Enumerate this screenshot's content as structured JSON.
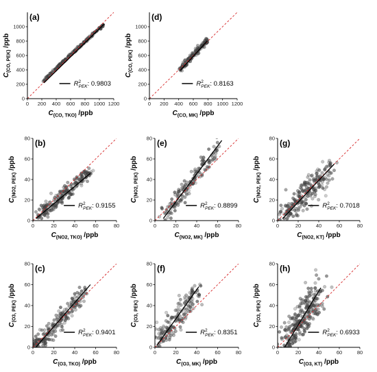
{
  "chart_data": [
    {
      "panel": "(a)",
      "type": "scatter",
      "xlabel": {
        "main": "C",
        "sub": "(CO, TKO)",
        "unit": "/ppb"
      },
      "ylabel": {
        "main": "C",
        "sub": "(CO, PEK)",
        "unit": "/ppb"
      },
      "xlim": [
        0,
        1200
      ],
      "ylim": [
        0,
        1200
      ],
      "xticks": [
        0,
        200,
        400,
        600,
        800,
        1000,
        1200
      ],
      "yticks": [
        0,
        200,
        400,
        600,
        800,
        1000
      ],
      "r2_label": {
        "main": "R",
        "sup": "2",
        "sub": "PEK",
        "value": ": 0.9803"
      },
      "fit": {
        "x": [
          230,
          1070
        ],
        "y": [
          220,
          1040
        ]
      },
      "cloud": {
        "x": [
          [
            230,
            250
          ],
          [
            300,
            330
          ],
          [
            400,
            420
          ],
          [
            500,
            520
          ],
          [
            600,
            610
          ],
          [
            700,
            700
          ],
          [
            800,
            790
          ],
          [
            900,
            890
          ],
          [
            1000,
            970
          ],
          [
            1060,
            1030
          ]
        ],
        "spread": 0.35,
        "n": 170
      }
    },
    {
      "panel": "(d)",
      "type": "scatter",
      "xlabel": {
        "main": "C",
        "sub": "(CO, MK)",
        "unit": "/ppb"
      },
      "ylabel": {
        "main": "C",
        "sub": "(CO, PEK)",
        "unit": "/ppb"
      },
      "xlim": [
        0,
        1200
      ],
      "ylim": [
        0,
        1200
      ],
      "xticks": [
        0,
        200,
        400,
        600,
        800,
        1000,
        1200
      ],
      "yticks": [
        0,
        200,
        400,
        600,
        800,
        1000
      ],
      "r2_label": {
        "main": "R",
        "sup": "2",
        "sub": "PEK",
        "value": ": 0.8163"
      },
      "fit": {
        "x": [
          420,
          790
        ],
        "y": [
          390,
          800
        ]
      },
      "cloud": {
        "x": [
          [
            420,
            400
          ],
          [
            480,
            470
          ],
          [
            540,
            540
          ],
          [
            600,
            610
          ],
          [
            650,
            660
          ],
          [
            700,
            720
          ],
          [
            760,
            780
          ],
          [
            790,
            810
          ]
        ],
        "spread": 0.9,
        "n": 130
      }
    },
    {
      "panel": "(b)",
      "type": "scatter",
      "xlabel": {
        "main": "C",
        "sub": "(NO2, TKO)",
        "unit": "/ppb"
      },
      "ylabel": {
        "main": "C",
        "sub": "(NO2, PEK)",
        "unit": "/ppb"
      },
      "xlim": [
        0,
        80
      ],
      "ylim": [
        0,
        80
      ],
      "xticks": [
        0,
        20,
        40,
        60,
        80
      ],
      "yticks": [
        0,
        20,
        40,
        60,
        80
      ],
      "r2_label": {
        "main": "R",
        "sup": "2",
        "sub": "PEK",
        "value": ": 0.9155"
      },
      "fit": {
        "x": [
          3,
          55
        ],
        "y": [
          2,
          46
        ]
      },
      "cloud": {
        "x": [
          [
            5,
            4
          ],
          [
            10,
            8
          ],
          [
            15,
            12
          ],
          [
            20,
            17
          ],
          [
            25,
            21
          ],
          [
            30,
            26
          ],
          [
            35,
            30
          ],
          [
            40,
            34
          ],
          [
            45,
            38
          ],
          [
            50,
            43
          ],
          [
            55,
            47
          ]
        ],
        "spread": 2.0,
        "n": 200
      }
    },
    {
      "panel": "(e)",
      "type": "scatter",
      "xlabel": {
        "main": "C",
        "sub": "(NO2, MK)",
        "unit": "/ppb"
      },
      "ylabel": {
        "main": "C",
        "sub": "(NO2, PEK)",
        "unit": "/ppb"
      },
      "xlim": [
        0,
        80
      ],
      "ylim": [
        0,
        80
      ],
      "xticks": [
        0,
        20,
        40,
        60,
        80
      ],
      "yticks": [
        0,
        20,
        40,
        60,
        80
      ],
      "r2_label": {
        "main": "R",
        "sup": "2",
        "sub": "PEK",
        "value": ": 0.8899"
      },
      "fit": {
        "x": [
          8,
          64
        ],
        "y": [
          2,
          78
        ]
      },
      "cloud": {
        "x": [
          [
            10,
            5
          ],
          [
            15,
            12
          ],
          [
            20,
            18
          ],
          [
            25,
            25
          ],
          [
            30,
            32
          ],
          [
            35,
            38
          ],
          [
            40,
            45
          ],
          [
            45,
            52
          ],
          [
            50,
            58
          ],
          [
            55,
            65
          ],
          [
            60,
            72
          ]
        ],
        "spread": 2.6,
        "n": 150
      }
    },
    {
      "panel": "(g)",
      "type": "scatter",
      "xlabel": {
        "main": "C",
        "sub": "(NO2, KT)",
        "unit": "/ppb"
      },
      "ylabel": {
        "main": "C",
        "sub": "(NO2, PEK)",
        "unit": "/ppb"
      },
      "xlim": [
        0,
        80
      ],
      "ylim": [
        0,
        80
      ],
      "xticks": [
        0,
        20,
        40,
        60,
        80
      ],
      "yticks": [
        0,
        20,
        40,
        60,
        80
      ],
      "r2_label": {
        "main": "R",
        "sup": "2",
        "sub": "PEK",
        "value": ": 0.7018"
      },
      "fit": {
        "x": [
          5,
          55
        ],
        "y": [
          2,
          55
        ]
      },
      "cloud": {
        "x": [
          [
            6,
            4
          ],
          [
            10,
            8
          ],
          [
            15,
            14
          ],
          [
            20,
            19
          ],
          [
            25,
            24
          ],
          [
            30,
            30
          ],
          [
            35,
            35
          ],
          [
            40,
            40
          ],
          [
            45,
            45
          ],
          [
            52,
            50
          ]
        ],
        "spread": 4.0,
        "n": 220
      }
    },
    {
      "panel": "(c)",
      "type": "scatter",
      "xlabel": {
        "main": "C",
        "sub": "(O3, TKO)",
        "unit": "/ppb"
      },
      "ylabel": {
        "main": "C",
        "sub": "(O3, PEK)",
        "unit": "/ppb"
      },
      "xlim": [
        0,
        80
      ],
      "ylim": [
        0,
        80
      ],
      "xticks": [
        0,
        20,
        40,
        60,
        80
      ],
      "yticks": [
        0,
        20,
        40,
        60,
        80
      ],
      "r2_label": {
        "main": "R",
        "sup": "2",
        "sub": "PEK",
        "value": ": 0.9401"
      },
      "fit": {
        "x": [
          1,
          55
        ],
        "y": [
          -2,
          60
        ]
      },
      "cloud": {
        "x": [
          [
            2,
            2
          ],
          [
            3,
            1
          ],
          [
            5,
            4
          ],
          [
            10,
            8
          ],
          [
            15,
            14
          ],
          [
            20,
            18
          ],
          [
            25,
            24
          ],
          [
            30,
            30
          ],
          [
            35,
            36
          ],
          [
            40,
            42
          ],
          [
            45,
            46
          ],
          [
            50,
            55
          ]
        ],
        "spread": 2.6,
        "n": 200
      }
    },
    {
      "panel": "(f)",
      "type": "scatter",
      "xlabel": {
        "main": "C",
        "sub": "(O3, MK)",
        "unit": "/ppb"
      },
      "ylabel": {
        "main": "C",
        "sub": "(O3, PEK)",
        "unit": "/ppb"
      },
      "xlim": [
        0,
        80
      ],
      "ylim": [
        0,
        80
      ],
      "xticks": [
        0,
        20,
        40,
        60,
        80
      ],
      "yticks": [
        0,
        20,
        40,
        60,
        80
      ],
      "r2_label": {
        "main": "R",
        "sup": "2",
        "sub": "PEK",
        "value": ": 0.8351"
      },
      "fit": {
        "x": [
          2,
          42
        ],
        "y": [
          2,
          58
        ]
      },
      "cloud": {
        "x": [
          [
            3,
            6
          ],
          [
            6,
            10
          ],
          [
            10,
            15
          ],
          [
            15,
            20
          ],
          [
            20,
            26
          ],
          [
            25,
            33
          ],
          [
            30,
            41
          ],
          [
            35,
            48
          ],
          [
            40,
            55
          ]
        ],
        "spread": 3.5,
        "n": 160
      }
    },
    {
      "panel": "(h)",
      "type": "scatter",
      "xlabel": {
        "main": "C",
        "sub": "(O3, KT)",
        "unit": "/ppb"
      },
      "ylabel": {
        "main": "C",
        "sub": "(O3, PEK)",
        "unit": "/ppb"
      },
      "xlim": [
        0,
        80
      ],
      "ylim": [
        0,
        80
      ],
      "xticks": [
        0,
        20,
        40,
        60,
        80
      ],
      "yticks": [
        0,
        20,
        40,
        60,
        80
      ],
      "r2_label": {
        "main": "R",
        "sup": "2",
        "sub": "PEK",
        "value": ": 0.6933"
      },
      "fit": {
        "x": [
          5,
          42
        ],
        "y": [
          -3,
          57
        ]
      },
      "cloud": {
        "x": [
          [
            8,
            4
          ],
          [
            12,
            10
          ],
          [
            16,
            16
          ],
          [
            20,
            22
          ],
          [
            24,
            28
          ],
          [
            28,
            34
          ],
          [
            32,
            40
          ],
          [
            36,
            46
          ],
          [
            40,
            52
          ]
        ],
        "spread": 5.0,
        "n": 260
      }
    }
  ],
  "colors": {
    "points": "#4a4a4a",
    "fit": "#000000",
    "identity": "#d62728",
    "axis": "#000000"
  }
}
